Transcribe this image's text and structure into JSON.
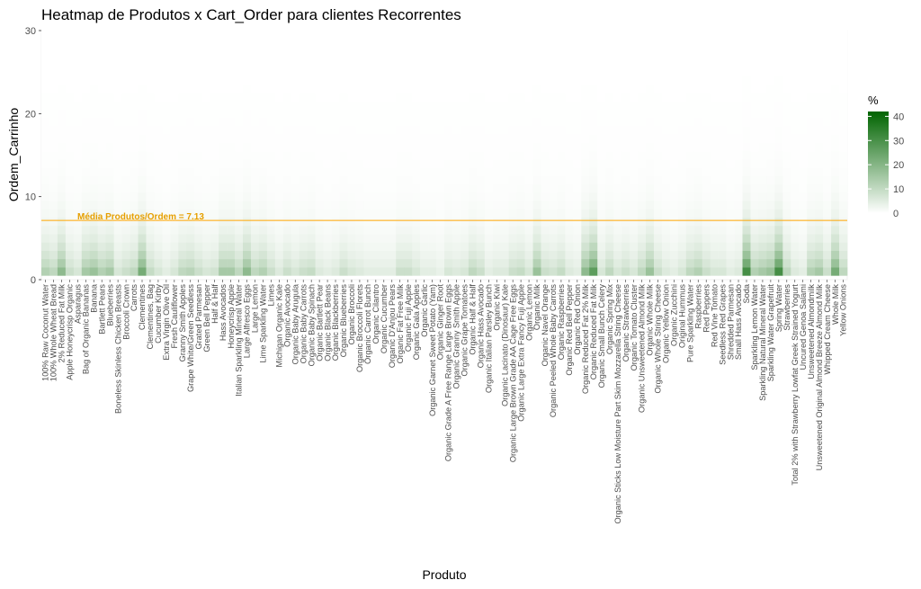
{
  "chart_data": {
    "type": "heatmap",
    "title": "Heatmap de Produtos x Cart_Order para clientes Recorrentes",
    "xlabel": "Produto",
    "ylabel": "Ordem_Carrinho",
    "ylim": [
      0,
      30
    ],
    "yticks": [
      0,
      10,
      20,
      30
    ],
    "legend": {
      "title": "%",
      "position": "right",
      "ticks": [
        0,
        10,
        20,
        30,
        40
      ],
      "min": 0,
      "max": 42,
      "low_color": "#ffffff",
      "high_color": "#006400"
    },
    "hline": {
      "y": 7.13,
      "label": "Média Produtos/Ordem = 7.13",
      "color": "#ffa500"
    },
    "categories": [
      "100% Raw Coconut Water",
      "100% Whole Wheat Bread",
      "2% Reduced Fat Milk",
      "Apple Honeycrisp Organic",
      "Asparagus",
      "Bag of Organic Bananas",
      "Banana",
      "Bartlett Pears",
      "Blueberries",
      "Boneless Skinless Chicken Breasts",
      "Broccoli Crown",
      "Carrots",
      "Clementines",
      "Clementines, Bag",
      "Cucumber Kirby",
      "Extra Virgin Olive Oil",
      "Fresh Cauliflower",
      "Granny Smith Apples",
      "Grape White/Green Seedless",
      "Grated Parmesan",
      "Green Bell Pepper",
      "Half & Half",
      "Hass Avocados",
      "Honeycrisp Apple",
      "Italian Sparkling Mineral Water",
      "Large Alfresco Eggs",
      "Large Lemon",
      "Lime Sparkling Water",
      "Limes",
      "Michigan Organic Kale",
      "Organic Avocado",
      "Organic Baby Arugula",
      "Organic Baby Carrots",
      "Organic Baby Spinach",
      "Organic Bartlett Pear",
      "Organic Black Beans",
      "Organic Blackberries",
      "Organic Blueberries",
      "Organic Broccoli",
      "Organic Broccoli Florets",
      "Organic Carrot Bunch",
      "Organic Cilantro",
      "Organic Cucumber",
      "Organic D'Anjou Pears",
      "Organic Fat Free Milk",
      "Organic Fuji Apple",
      "Organic Gala Apples",
      "Organic Garlic",
      "Organic Garnet Sweet Potato (Yam)",
      "Organic Ginger Root",
      "Organic Grade A Free Range Large Brown Eggs",
      "Organic Granny Smith Apple",
      "Organic Grape Tomatoes",
      "Organic Half & Half",
      "Organic Hass Avocado",
      "Organic Italian Parsley Bunch",
      "Organic Kiwi",
      "Organic Lacinato (Dinosaur) Kale",
      "Organic Large Brown Grade AA Cage Free Eggs",
      "Organic Large Extra Fancy Fuji Apple",
      "Organic Lemon",
      "Organic Milk",
      "Organic Navel Orange",
      "Organic Peeled Whole Baby Carrots",
      "Organic Raspberries",
      "Organic Red Bell Pepper",
      "Organic Red Onion",
      "Organic Reduced Fat 2% Milk",
      "Organic Reduced Fat Milk",
      "Organic Small Bunch Celery",
      "Organic Spring Mix",
      "Organic Sticks Low Moisture Part Skim Mozzarella String Cheese",
      "Organic Strawberries",
      "Organic Tomato Cluster",
      "Organic Unsweetened Almond Milk",
      "Organic Whole Milk",
      "Organic Whole String Cheese",
      "Organic Yellow Onion",
      "Organic Zucchini",
      "Original Hummus",
      "Pure Sparkling Water",
      "Raspberries",
      "Red Peppers",
      "Red Vine Tomato",
      "Seedless Red Grapes",
      "Shredded Parmesan",
      "Small Hass Avocado",
      "Soda",
      "Sparkling Lemon Water",
      "Sparkling Natural Mineral Water",
      "Sparkling Water Grapefruit",
      "Spring Water",
      "Strawberries",
      "Total 2% with Strawberry Lowfat Greek Strained Yogurt",
      "Uncured Genoa Salami",
      "Unsweetened Almondmilk",
      "Unsweetened Original Almond Breeze Almond Milk",
      "Whipped Cream Cheese",
      "Whole Milk",
      "Yellow Onions"
    ],
    "cart_order": {
      "min": 1,
      "max": 30
    },
    "first_position_pct": [
      12,
      10,
      18,
      8,
      6,
      14,
      16,
      12,
      14,
      6,
      8,
      10,
      22,
      9,
      6,
      4,
      6,
      10,
      11,
      8,
      6,
      7,
      14,
      14,
      10,
      18,
      10,
      12,
      8,
      5,
      8,
      6,
      8,
      9,
      5,
      4,
      5,
      8,
      6,
      5,
      4,
      4,
      4,
      4,
      8,
      8,
      6,
      4,
      4,
      3,
      6,
      5,
      6,
      10,
      8,
      4,
      5,
      5,
      8,
      9,
      6,
      16,
      8,
      7,
      9,
      5,
      4,
      18,
      26,
      6,
      10,
      6,
      8,
      6,
      10,
      16,
      8,
      5,
      4,
      6,
      10,
      12,
      8,
      6,
      6,
      4,
      5,
      30,
      12,
      14,
      16,
      30,
      10,
      5,
      4,
      12,
      14,
      8,
      22,
      10
    ]
  }
}
